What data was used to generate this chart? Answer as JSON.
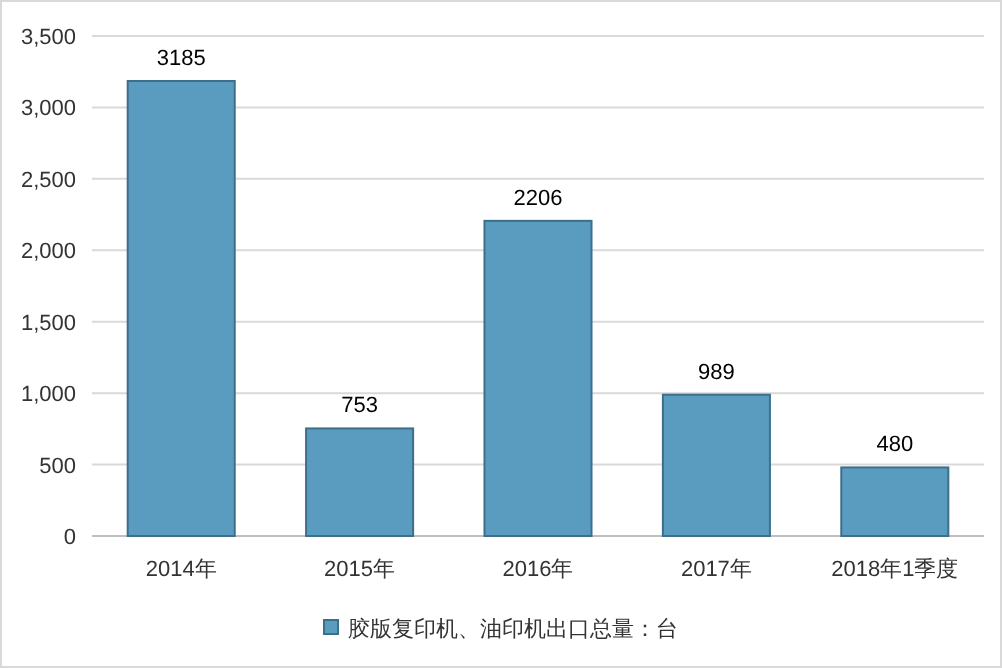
{
  "chart_data": {
    "type": "bar",
    "categories": [
      "2014年",
      "2015年",
      "2016年",
      "2017年",
      "2018年1季度"
    ],
    "series": [
      {
        "name": "胶版复印机、油印机出口总量：台",
        "color": "#5a9cc0",
        "values": [
          3185,
          753,
          2206,
          989,
          480
        ]
      }
    ],
    "ylim": [
      0,
      3500
    ],
    "yticks": [
      {
        "value": 0,
        "label": "0"
      },
      {
        "value": 500,
        "label": "500"
      },
      {
        "value": 1000,
        "label": "1,000"
      },
      {
        "value": 1500,
        "label": "1,500"
      },
      {
        "value": 2000,
        "label": "2,000"
      },
      {
        "value": 2500,
        "label": "2,500"
      },
      {
        "value": 3000,
        "label": "3,000"
      },
      {
        "value": 3500,
        "label": "3,500"
      }
    ],
    "grid": "y",
    "legend": "bottom",
    "data_labels": true
  }
}
